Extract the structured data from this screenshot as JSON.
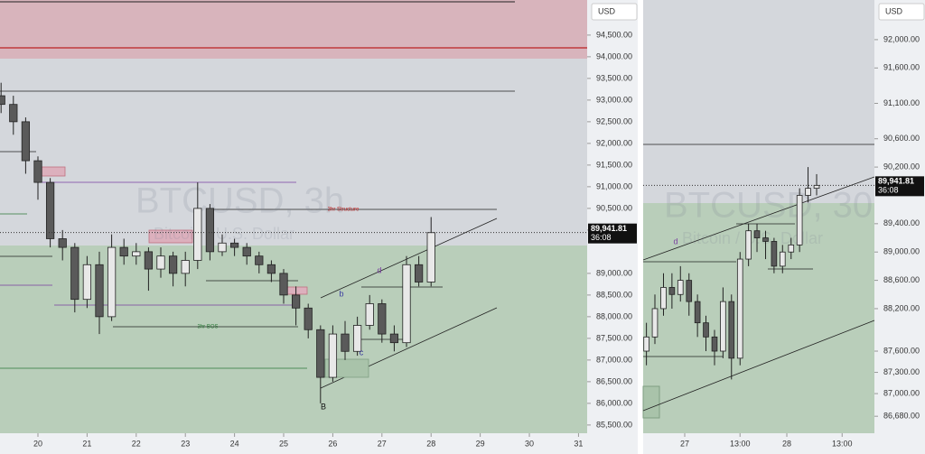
{
  "chart_data": [
    {
      "type": "candlestick",
      "title": "BTCUSD, 3h",
      "subtitle": "Bitcoin / U.S. Dollar",
      "y_label": "USD",
      "up_color": "#e8e8e8",
      "down_color": "#5a5a5a",
      "x": [
        19.25,
        19.5,
        19.75,
        20,
        20.25,
        20.5,
        20.75,
        21,
        21.25,
        21.5,
        21.75,
        22,
        22.25,
        22.5,
        22.75,
        23,
        23.25,
        23.5,
        23.75,
        24,
        24.25,
        24.5,
        24.75,
        25,
        25.25,
        25.5,
        25.75,
        26,
        26.25,
        26.5,
        26.75,
        27,
        27.25,
        27.5,
        27.75,
        28
      ],
      "open": [
        93100,
        92900,
        92500,
        91600,
        91100,
        89800,
        89600,
        88400,
        89200,
        88000,
        89600,
        89400,
        89500,
        89100,
        89400,
        89000,
        89300,
        90500,
        89500,
        89700,
        89600,
        89400,
        89200,
        89000,
        88500,
        88200,
        87700,
        86600,
        87600,
        87200,
        87800,
        88300,
        87600,
        87400,
        89200,
        88800
      ],
      "high": [
        93400,
        93100,
        92600,
        91700,
        91200,
        90000,
        89700,
        89400,
        89500,
        89900,
        89800,
        89700,
        89600,
        89600,
        89500,
        89500,
        91100,
        90600,
        89900,
        89800,
        89700,
        89500,
        89300,
        89100,
        88700,
        88300,
        87800,
        87800,
        87900,
        88000,
        88500,
        88400,
        87800,
        89400,
        89400,
        90300
      ],
      "low": [
        92700,
        92200,
        91300,
        90700,
        89600,
        89300,
        88100,
        88200,
        87600,
        87900,
        89200,
        89200,
        88600,
        88900,
        88700,
        88700,
        89100,
        89300,
        89400,
        89400,
        89200,
        89000,
        88800,
        88300,
        87800,
        87500,
        86000,
        86500,
        87000,
        87100,
        87700,
        87400,
        87200,
        87300,
        88700,
        88700
      ],
      "close": [
        92900,
        92500,
        91600,
        91100,
        89800,
        89600,
        88400,
        89200,
        88000,
        89600,
        89400,
        89500,
        89100,
        89400,
        89000,
        89300,
        90500,
        89500,
        89700,
        89600,
        89400,
        89200,
        89000,
        88500,
        88200,
        87700,
        86600,
        87600,
        87200,
        87800,
        88300,
        87600,
        87400,
        89200,
        88800,
        89940
      ],
      "xlim": [
        19.228,
        31.176
      ],
      "xticks": [
        20,
        21,
        22,
        23,
        24,
        25,
        26,
        27,
        28,
        29,
        30,
        31
      ],
      "ylim": [
        85310,
        95310
      ],
      "yticks": [
        {
          "value": 94500,
          "label": "94,500.00"
        },
        {
          "value": 94000,
          "label": "94,000.00"
        },
        {
          "value": 93500,
          "label": "93,500.00"
        },
        {
          "value": 93000,
          "label": "93,000.00"
        },
        {
          "value": 92500,
          "label": "92,500.00"
        },
        {
          "value": 92000,
          "label": "92,000.00"
        },
        {
          "value": 91500,
          "label": "91,500.00"
        },
        {
          "value": 91000,
          "label": "91,000.00"
        },
        {
          "value": 90500,
          "label": "90,500.00"
        },
        {
          "value": 90000,
          "label": "90,000.00"
        },
        {
          "value": 89000,
          "label": "89,000.00"
        },
        {
          "value": 88500,
          "label": "88,500.00"
        },
        {
          "value": 88000,
          "label": "88,000.00"
        },
        {
          "value": 87500,
          "label": "87,500.00"
        },
        {
          "value": 87000,
          "label": "87,000.00"
        },
        {
          "value": 86500,
          "label": "86,500.00"
        },
        {
          "value": 86000,
          "label": "86,000.00"
        },
        {
          "value": 85500,
          "label": "85,500.00"
        }
      ],
      "last_price": {
        "value": 89941.81,
        "label": "89,941.81"
      },
      "countdown": "36:08",
      "annotations": [
        "3hr Structure",
        "3hr BOS",
        "B",
        "b",
        "c",
        "d"
      ]
    },
    {
      "type": "candlestick",
      "title": "BTCUSD, 30",
      "subtitle": "Bitcoin / U.S. Dollar",
      "y_label": "USD",
      "up_color": "#e8e8e8",
      "down_color": "#5a5a5a",
      "x": [
        26.625,
        26.708,
        26.792,
        26.875,
        26.958,
        27.042,
        27.125,
        27.208,
        27.292,
        27.375,
        27.458,
        27.542,
        27.625,
        27.708,
        27.792,
        27.875,
        27.958,
        28.042,
        28.125,
        28.208,
        28.292
      ],
      "open": [
        87600,
        87800,
        88200,
        88500,
        88400,
        88600,
        88300,
        88000,
        87800,
        87600,
        88300,
        87500,
        88900,
        89300,
        89200,
        89150,
        88800,
        89000,
        89100,
        89800,
        89900
      ],
      "high": [
        88000,
        88400,
        88700,
        88700,
        88800,
        88700,
        88400,
        88100,
        87900,
        88500,
        88400,
        89000,
        89400,
        89400,
        89300,
        89200,
        89100,
        89200,
        89900,
        90200,
        90100
      ],
      "low": [
        87400,
        87700,
        88100,
        88200,
        88300,
        88100,
        87800,
        87600,
        87400,
        87500,
        87200,
        87400,
        88800,
        89000,
        88900,
        88700,
        88700,
        88900,
        89000,
        89700,
        89800
      ],
      "close": [
        87800,
        88200,
        88500,
        88400,
        88600,
        88300,
        88000,
        87800,
        87600,
        88300,
        87500,
        88900,
        89300,
        89200,
        89150,
        88800,
        89000,
        89100,
        89800,
        89900,
        89941.81
      ],
      "xlim": [
        26.593,
        28.858
      ],
      "xticks": [
        27,
        {
          "value": 27.5417,
          "label": "13:00"
        },
        28,
        {
          "value": 28.5417,
          "label": "13:00"
        }
      ],
      "ylim": [
        86440,
        92560
      ],
      "yticks": [
        {
          "value": 92000,
          "label": "92,000.00"
        },
        {
          "value": 91600,
          "label": "91,600.00"
        },
        {
          "value": 91100,
          "label": "91,100.00"
        },
        {
          "value": 90600,
          "label": "90,600.00"
        },
        {
          "value": 90200,
          "label": "90,200.00"
        },
        {
          "value": 89400,
          "label": "89,400.00"
        },
        {
          "value": 89000,
          "label": "89,000.00"
        },
        {
          "value": 88600,
          "label": "88,600.00"
        },
        {
          "value": 88200,
          "label": "88,200.00"
        },
        {
          "value": 87600,
          "label": "87,600.00"
        },
        {
          "value": 87300,
          "label": "87,300.00"
        },
        {
          "value": 87000,
          "label": "87,000.00"
        },
        {
          "value": 86680,
          "label": "86,680.00"
        }
      ],
      "last_price": {
        "value": 89941.81,
        "label": "89,941.81"
      },
      "countdown": "36:08",
      "annotations": [
        "d"
      ]
    }
  ]
}
